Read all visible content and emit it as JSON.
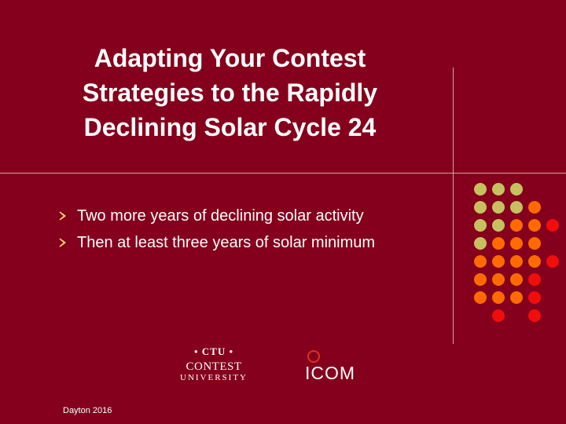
{
  "slide": {
    "title": "Adapting Your Contest Strategies to the Rapidly Declining Solar Cycle 24",
    "bullets": [
      "Two more years of declining solar activity",
      "Then at least three years of solar minimum"
    ],
    "footer": "Dayton 2016"
  },
  "logos": {
    "ctu_badge": "• CTU •",
    "ctu_name": "CONTEST",
    "ctu_sub": "UNIVERSITY",
    "icom": "ICOM"
  },
  "colors": {
    "background": "#84001c",
    "dot_olive": "#c8c060",
    "dot_orange": "#ff6a00",
    "dot_red": "#f20d0d"
  },
  "icons": {
    "bullet": "arrow-bullet-icon"
  }
}
